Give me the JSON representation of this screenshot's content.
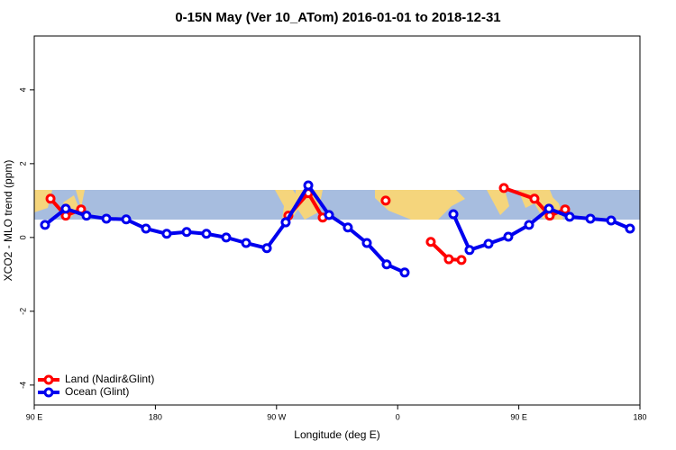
{
  "chart_data": {
    "type": "line",
    "title": "0-15N May (Ver 10_ATom)   2016-01-01 to 2018-12-31",
    "xlabel": "Longitude (deg E)",
    "ylabel": "XCO2 - MLO trend (ppm)",
    "xlim": [
      90,
      540
    ],
    "xticks": [
      {
        "value": 90,
        "label": "90 E"
      },
      180,
      {
        "value": 270,
        "label": "90 W"
      },
      {
        "value": 360,
        "label": "0"
      },
      {
        "value": 450,
        "label": "90 E"
      },
      {
        "value": 540,
        "label": "180"
      }
    ],
    "ylim": [
      -4.54,
      5.46
    ],
    "yticks": [
      -4,
      -2,
      0,
      2,
      4
    ],
    "legend": "bottom-left",
    "series": [
      {
        "name": "Land (Nadir&Glint)",
        "color": "#ff0000",
        "x": [
          102.1,
          113.4,
          124.8,
          null,
          278.8,
          293.6,
          304.3,
          null,
          351.1,
          null,
          384.6,
          398,
          407.4,
          null,
          438.9,
          461.6,
          473,
          484.4
        ],
        "values": [
          1.05,
          0.59,
          0.76,
          null,
          0.59,
          1.2,
          0.54,
          null,
          1.0,
          null,
          -0.12,
          -0.59,
          -0.61,
          null,
          1.34,
          1.05,
          0.59,
          0.76
        ]
      },
      {
        "name": "Ocean (Glint)",
        "color": "#0000ee",
        "x": [
          98,
          113.4,
          128.8,
          143.6,
          158.3,
          173,
          188.4,
          203.2,
          217.9,
          232.6,
          247.4,
          262.8,
          276.8,
          293.6,
          309,
          323,
          337.1,
          351.8,
          365.2,
          null,
          401.4,
          413.4,
          427.5,
          442.2,
          457.6,
          472.4,
          487.8,
          503.2,
          518.6,
          532.6
        ],
        "values": [
          0.34,
          0.78,
          0.59,
          0.51,
          0.49,
          0.24,
          0.1,
          0.15,
          0.1,
          0.0,
          -0.15,
          -0.29,
          0.41,
          1.41,
          0.61,
          0.27,
          -0.15,
          -0.73,
          -0.95,
          null,
          0.63,
          -0.34,
          -0.17,
          0.02,
          0.34,
          0.78,
          0.56,
          0.51,
          0.46,
          0.24
        ]
      }
    ]
  }
}
